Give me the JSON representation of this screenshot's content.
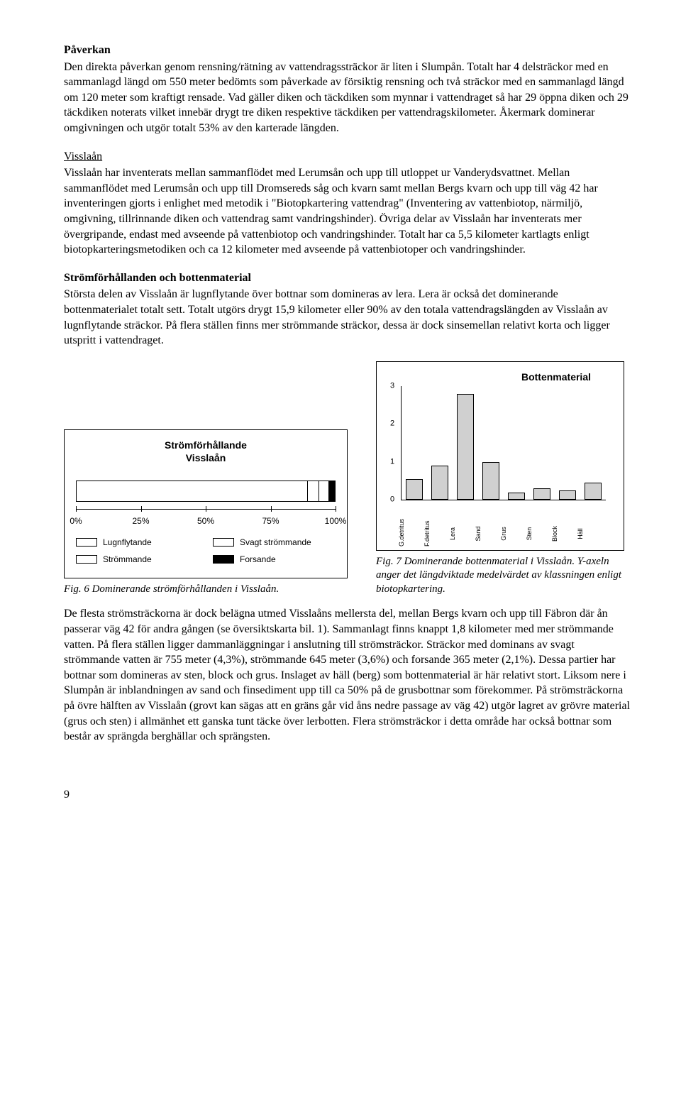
{
  "paverkan": {
    "heading": "Påverkan",
    "body": "Den direkta påverkan genom rensning/rätning av vattendragssträckor är liten i Slumpån. Totalt har 4 delsträckor med en sammanlagd längd om 550 meter bedömts som påverkade av försiktig rensning och två sträckor med en sammanlagd längd om 120 meter som kraftigt rensade. Vad gäller diken och täckdiken som mynnar i vattendraget så har 29 öppna diken och 29 täckdiken noterats vilket innebär drygt tre diken respektive täckdiken per vattendragskilometer. Åkermark dominerar omgivningen och utgör totalt 53% av den karterade längden."
  },
  "visslaan": {
    "heading": "Visslaån",
    "body": "Visslaån har inventerats mellan sammanflödet med Lerumsån och upp till utloppet ur Vanderydsvattnet. Mellan sammanflödet med Lerumsån och upp till Dromsereds såg och kvarn samt mellan Bergs kvarn och upp till väg 42 har inventeringen gjorts i enlighet med metodik i \"Biotopkartering vattendrag\" (Inventering av vattenbiotop, närmiljö, omgivning, tillrinnande diken och vattendrag samt vandringshinder). Övriga delar av Visslaån har inventerats mer övergripande, endast med avseende på vattenbiotop och vandringshinder. Totalt har ca 5,5 kilometer kartlagts enligt biotopkarteringsmetodiken och ca 12 kilometer med avseende på vattenbiotoper och vandringshinder."
  },
  "strom": {
    "heading": "Strömförhållanden och bottenmaterial",
    "body": "Största delen av Visslaån är lugnflytande över bottnar som domineras av lera. Lera är också det dominerande bottenmaterialet totalt sett. Totalt utgörs drygt 15,9 kilometer eller 90% av den totala vattendragslängden av Visslaån av lugnflytande sträckor. På flera ställen finns mer strömmande sträckor, dessa är dock sinsemellan relativt korta och ligger utspritt i vattendraget."
  },
  "chart_strom": {
    "type": "stacked-horizontal-bar",
    "title_l1": "Strömförhållande",
    "title_l2": "Visslaån",
    "segments": [
      {
        "label": "Lugnflytande",
        "pct": 90.0,
        "color": "#ffffff"
      },
      {
        "label": "Svagt strömmande",
        "pct": 4.3,
        "color": "#ffffff"
      },
      {
        "label": "Strömmande",
        "pct": 3.6,
        "color": "#ffffff"
      },
      {
        "label": "Forsande",
        "pct": 2.1,
        "color": "#000000"
      }
    ],
    "ticks": [
      "0%",
      "25%",
      "50%",
      "75%",
      "100%"
    ],
    "fig_caption": "Fig. 6 Dominerande strömförhållanden i Visslaån."
  },
  "chart_botten": {
    "type": "bar",
    "title": "Bottenmaterial",
    "ylim": [
      0,
      3
    ],
    "ytick_step": 1,
    "categories": [
      "G.detritus",
      "F.detritus",
      "Lera",
      "Sand",
      "Grus",
      "Sten",
      "Block",
      "Häll"
    ],
    "values": [
      0.55,
      0.9,
      2.8,
      1.0,
      0.18,
      0.3,
      0.25,
      0.45
    ],
    "bar_color": "#d0d0d0",
    "bar_border": "#000000",
    "fig_caption": "Fig. 7 Dominerande bottenmaterial i Visslaån. Y-axeln anger det längdviktade medelvärdet av klassningen enligt biotopkartering."
  },
  "closing": {
    "body": "De flesta strömsträckorna är dock belägna utmed Visslaåns mellersta del, mellan Bergs kvarn och upp till Fäbron där ån passerar väg 42 för andra gången (se översiktskarta bil. 1). Sammanlagt finns knappt 1,8 kilometer med mer strömmande vatten. På flera ställen ligger dammanläggningar i anslutning till strömsträckor. Sträckor med dominans av svagt strömmande vatten är 755 meter (4,3%), strömmande 645 meter (3,6%) och forsande 365 meter (2,1%). Dessa partier har bottnar som domineras av sten, block och grus. Inslaget av häll (berg) som bottenmaterial är här relativt stort. Liksom nere i Slumpån är inblandningen av sand och finsediment upp till ca 50% på de grusbottnar som förekommer. På strömsträckorna på övre hälften av Visslaån (grovt kan sägas att en gräns går vid åns nedre passage av väg 42) utgör lagret av grövre material (grus och sten) i allmänhet ett ganska tunt täcke över lerbotten. Flera strömsträckor i detta område har också bottnar som består av sprängda berghällar och sprängsten."
  },
  "page_number": "9"
}
